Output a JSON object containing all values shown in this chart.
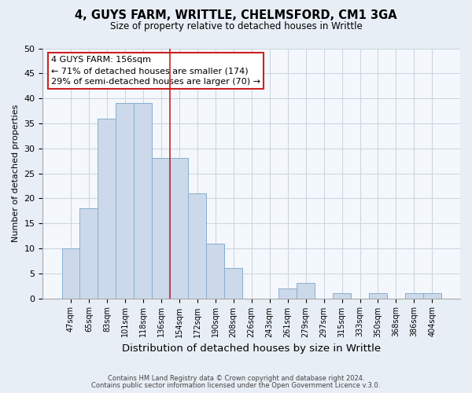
{
  "title": "4, GUYS FARM, WRITTLE, CHELMSFORD, CM1 3GA",
  "subtitle": "Size of property relative to detached houses in Writtle",
  "xlabel": "Distribution of detached houses by size in Writtle",
  "ylabel": "Number of detached properties",
  "categories": [
    "47sqm",
    "65sqm",
    "83sqm",
    "101sqm",
    "118sqm",
    "136sqm",
    "154sqm",
    "172sqm",
    "190sqm",
    "208sqm",
    "226sqm",
    "243sqm",
    "261sqm",
    "279sqm",
    "297sqm",
    "315sqm",
    "333sqm",
    "350sqm",
    "368sqm",
    "386sqm",
    "404sqm"
  ],
  "values": [
    10,
    18,
    36,
    39,
    39,
    28,
    28,
    21,
    11,
    6,
    0,
    0,
    2,
    3,
    0,
    1,
    0,
    1,
    0,
    1,
    1
  ],
  "bar_color": "#ccd9ea",
  "bar_edge_color": "#89aece",
  "annotation_title": "4 GUYS FARM: 156sqm",
  "annotation_line1": "← 71% of detached houses are smaller (174)",
  "annotation_line2": "29% of semi-detached houses are larger (70) →",
  "annotation_box_color": "#ffffff",
  "annotation_box_edge_color": "#cc2222",
  "ylim": [
    0,
    50
  ],
  "yticks": [
    0,
    5,
    10,
    15,
    20,
    25,
    30,
    35,
    40,
    45,
    50
  ],
  "property_line_bar_index": 6,
  "footer1": "Contains HM Land Registry data © Crown copyright and database right 2024.",
  "footer2": "Contains public sector information licensed under the Open Government Licence v.3.0.",
  "bg_color": "#e8eef5",
  "plot_bg_color": "#f4f7fb",
  "grid_color": "#c8d4e0"
}
